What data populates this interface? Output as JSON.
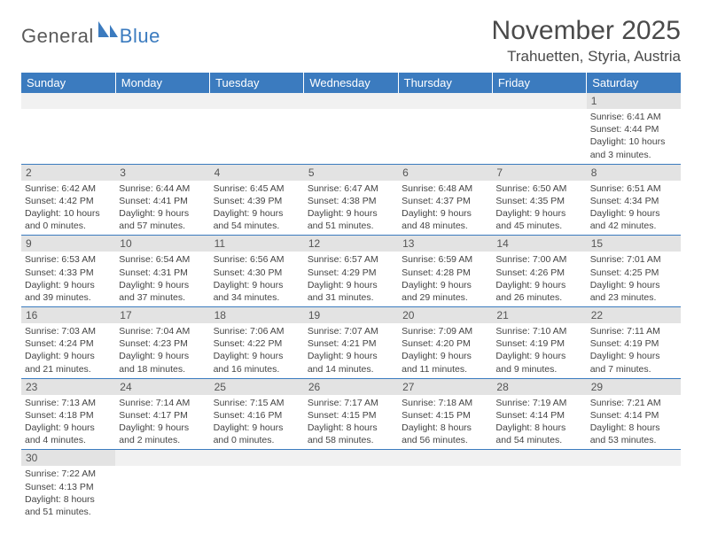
{
  "logo": {
    "text1": "General",
    "text2": "Blue"
  },
  "title": "November 2025",
  "location": "Trahuetten, Styria, Austria",
  "colors": {
    "header_bg": "#3b7bbf",
    "header_fg": "#ffffff",
    "daynum_bg": "#e3e3e3",
    "blank_bg": "#f1f1f1",
    "rule": "#3b7bbf",
    "text": "#444444"
  },
  "weekdays": [
    "Sunday",
    "Monday",
    "Tuesday",
    "Wednesday",
    "Thursday",
    "Friday",
    "Saturday"
  ],
  "weeks": [
    [
      {
        "blank": true
      },
      {
        "blank": true
      },
      {
        "blank": true
      },
      {
        "blank": true
      },
      {
        "blank": true
      },
      {
        "blank": true
      },
      {
        "day": "1",
        "sunrise": "Sunrise: 6:41 AM",
        "sunset": "Sunset: 4:44 PM",
        "daylight": "Daylight: 10 hours and 3 minutes."
      }
    ],
    [
      {
        "day": "2",
        "sunrise": "Sunrise: 6:42 AM",
        "sunset": "Sunset: 4:42 PM",
        "daylight": "Daylight: 10 hours and 0 minutes."
      },
      {
        "day": "3",
        "sunrise": "Sunrise: 6:44 AM",
        "sunset": "Sunset: 4:41 PM",
        "daylight": "Daylight: 9 hours and 57 minutes."
      },
      {
        "day": "4",
        "sunrise": "Sunrise: 6:45 AM",
        "sunset": "Sunset: 4:39 PM",
        "daylight": "Daylight: 9 hours and 54 minutes."
      },
      {
        "day": "5",
        "sunrise": "Sunrise: 6:47 AM",
        "sunset": "Sunset: 4:38 PM",
        "daylight": "Daylight: 9 hours and 51 minutes."
      },
      {
        "day": "6",
        "sunrise": "Sunrise: 6:48 AM",
        "sunset": "Sunset: 4:37 PM",
        "daylight": "Daylight: 9 hours and 48 minutes."
      },
      {
        "day": "7",
        "sunrise": "Sunrise: 6:50 AM",
        "sunset": "Sunset: 4:35 PM",
        "daylight": "Daylight: 9 hours and 45 minutes."
      },
      {
        "day": "8",
        "sunrise": "Sunrise: 6:51 AM",
        "sunset": "Sunset: 4:34 PM",
        "daylight": "Daylight: 9 hours and 42 minutes."
      }
    ],
    [
      {
        "day": "9",
        "sunrise": "Sunrise: 6:53 AM",
        "sunset": "Sunset: 4:33 PM",
        "daylight": "Daylight: 9 hours and 39 minutes."
      },
      {
        "day": "10",
        "sunrise": "Sunrise: 6:54 AM",
        "sunset": "Sunset: 4:31 PM",
        "daylight": "Daylight: 9 hours and 37 minutes."
      },
      {
        "day": "11",
        "sunrise": "Sunrise: 6:56 AM",
        "sunset": "Sunset: 4:30 PM",
        "daylight": "Daylight: 9 hours and 34 minutes."
      },
      {
        "day": "12",
        "sunrise": "Sunrise: 6:57 AM",
        "sunset": "Sunset: 4:29 PM",
        "daylight": "Daylight: 9 hours and 31 minutes."
      },
      {
        "day": "13",
        "sunrise": "Sunrise: 6:59 AM",
        "sunset": "Sunset: 4:28 PM",
        "daylight": "Daylight: 9 hours and 29 minutes."
      },
      {
        "day": "14",
        "sunrise": "Sunrise: 7:00 AM",
        "sunset": "Sunset: 4:26 PM",
        "daylight": "Daylight: 9 hours and 26 minutes."
      },
      {
        "day": "15",
        "sunrise": "Sunrise: 7:01 AM",
        "sunset": "Sunset: 4:25 PM",
        "daylight": "Daylight: 9 hours and 23 minutes."
      }
    ],
    [
      {
        "day": "16",
        "sunrise": "Sunrise: 7:03 AM",
        "sunset": "Sunset: 4:24 PM",
        "daylight": "Daylight: 9 hours and 21 minutes."
      },
      {
        "day": "17",
        "sunrise": "Sunrise: 7:04 AM",
        "sunset": "Sunset: 4:23 PM",
        "daylight": "Daylight: 9 hours and 18 minutes."
      },
      {
        "day": "18",
        "sunrise": "Sunrise: 7:06 AM",
        "sunset": "Sunset: 4:22 PM",
        "daylight": "Daylight: 9 hours and 16 minutes."
      },
      {
        "day": "19",
        "sunrise": "Sunrise: 7:07 AM",
        "sunset": "Sunset: 4:21 PM",
        "daylight": "Daylight: 9 hours and 14 minutes."
      },
      {
        "day": "20",
        "sunrise": "Sunrise: 7:09 AM",
        "sunset": "Sunset: 4:20 PM",
        "daylight": "Daylight: 9 hours and 11 minutes."
      },
      {
        "day": "21",
        "sunrise": "Sunrise: 7:10 AM",
        "sunset": "Sunset: 4:19 PM",
        "daylight": "Daylight: 9 hours and 9 minutes."
      },
      {
        "day": "22",
        "sunrise": "Sunrise: 7:11 AM",
        "sunset": "Sunset: 4:19 PM",
        "daylight": "Daylight: 9 hours and 7 minutes."
      }
    ],
    [
      {
        "day": "23",
        "sunrise": "Sunrise: 7:13 AM",
        "sunset": "Sunset: 4:18 PM",
        "daylight": "Daylight: 9 hours and 4 minutes."
      },
      {
        "day": "24",
        "sunrise": "Sunrise: 7:14 AM",
        "sunset": "Sunset: 4:17 PM",
        "daylight": "Daylight: 9 hours and 2 minutes."
      },
      {
        "day": "25",
        "sunrise": "Sunrise: 7:15 AM",
        "sunset": "Sunset: 4:16 PM",
        "daylight": "Daylight: 9 hours and 0 minutes."
      },
      {
        "day": "26",
        "sunrise": "Sunrise: 7:17 AM",
        "sunset": "Sunset: 4:15 PM",
        "daylight": "Daylight: 8 hours and 58 minutes."
      },
      {
        "day": "27",
        "sunrise": "Sunrise: 7:18 AM",
        "sunset": "Sunset: 4:15 PM",
        "daylight": "Daylight: 8 hours and 56 minutes."
      },
      {
        "day": "28",
        "sunrise": "Sunrise: 7:19 AM",
        "sunset": "Sunset: 4:14 PM",
        "daylight": "Daylight: 8 hours and 54 minutes."
      },
      {
        "day": "29",
        "sunrise": "Sunrise: 7:21 AM",
        "sunset": "Sunset: 4:14 PM",
        "daylight": "Daylight: 8 hours and 53 minutes."
      }
    ],
    [
      {
        "day": "30",
        "sunrise": "Sunrise: 7:22 AM",
        "sunset": "Sunset: 4:13 PM",
        "daylight": "Daylight: 8 hours and 51 minutes."
      },
      {
        "blank": true
      },
      {
        "blank": true
      },
      {
        "blank": true
      },
      {
        "blank": true
      },
      {
        "blank": true
      },
      {
        "blank": true
      }
    ]
  ]
}
